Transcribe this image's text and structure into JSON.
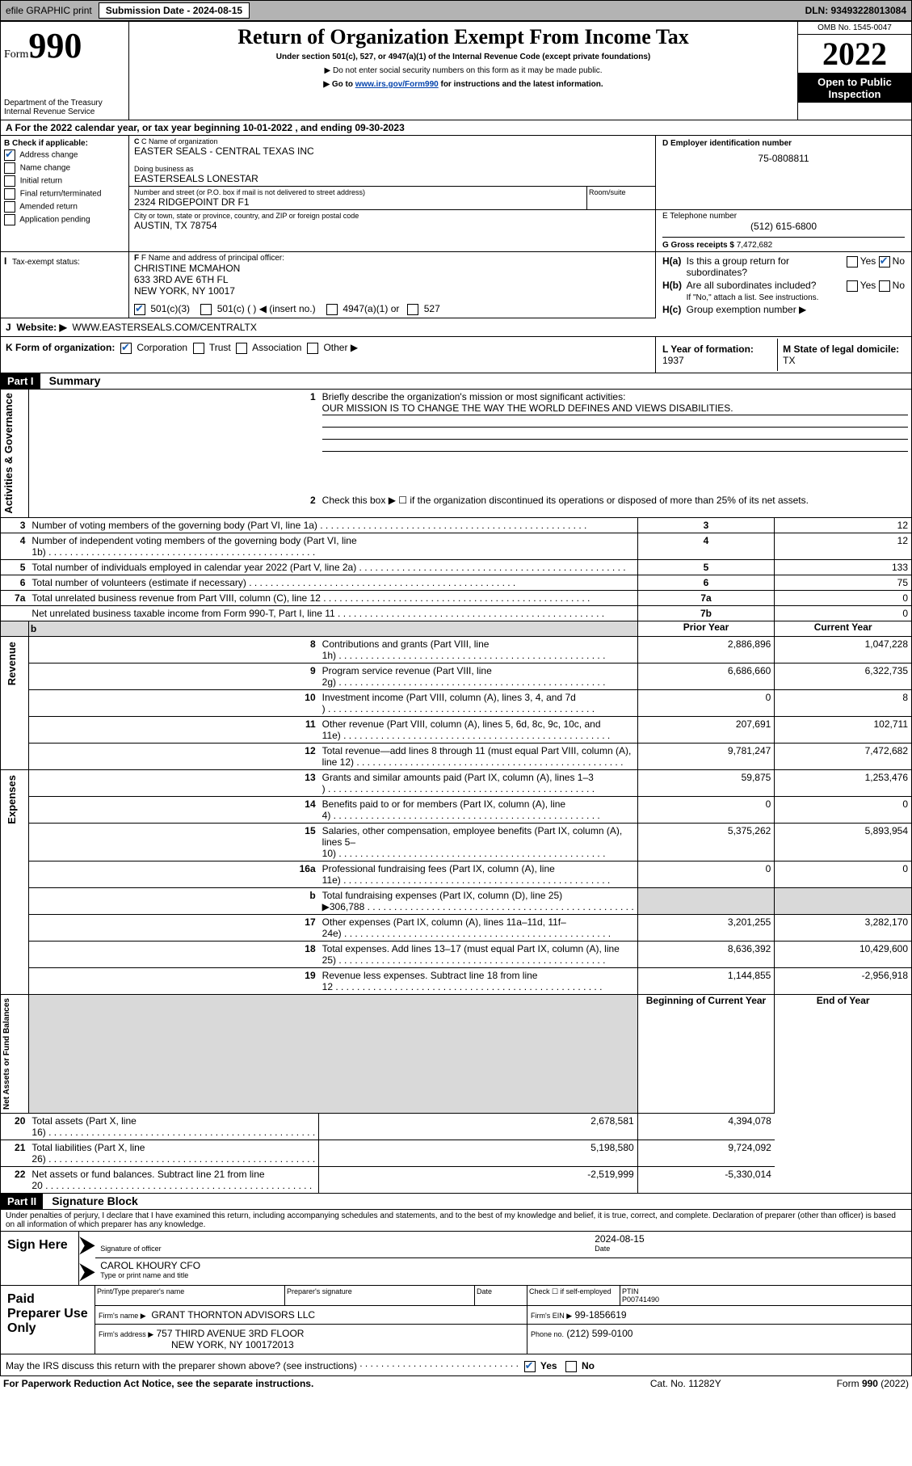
{
  "topbar": {
    "efile": "efile GRAPHIC print",
    "subdate_lbl": "Submission Date - 2024-08-15",
    "dln": "DLN: 93493228013084"
  },
  "header": {
    "form_word": "Form",
    "form_num": "990",
    "title": "Return of Organization Exempt From Income Tax",
    "subtitle1": "Under section 501(c), 527, or 4947(a)(1) of the Internal Revenue Code (except private foundations)",
    "subtitle2": "▶ Do not enter social security numbers on this form as it may be made public.",
    "subtitle3_pre": "▶ Go to ",
    "subtitle3_link": "www.irs.gov/Form990",
    "subtitle3_post": " for instructions and the latest information.",
    "dept": "Department of the Treasury",
    "irs": "Internal Revenue Service",
    "omb": "OMB No. 1545-0047",
    "year": "2022",
    "open": "Open to Public Inspection"
  },
  "periodA": {
    "text": "A For the 2022 calendar year, or tax year beginning 10-01-2022    , and ending 09-30-2023"
  },
  "boxB": {
    "title": "B Check if applicable:",
    "opts": [
      "Address change",
      "Name change",
      "Initial return",
      "Final return/terminated",
      "Amended return",
      "Application pending"
    ],
    "checked": [
      true,
      false,
      false,
      false,
      false,
      false
    ]
  },
  "boxC": {
    "lbl": "C Name of organization",
    "name": "EASTER SEALS - CENTRAL TEXAS INC",
    "dba_lbl": "Doing business as",
    "dba": "EASTERSEALS LONESTAR",
    "street_lbl": "Number and street (or P.O. box if mail is not delivered to street address)",
    "room_lbl": "Room/suite",
    "street": "2324 RIDGEPOINT DR F1",
    "city_lbl": "City or town, state or province, country, and ZIP or foreign postal code",
    "city": "AUSTIN, TX  78754"
  },
  "boxD": {
    "lbl": "D Employer identification number",
    "val": "75-0808811"
  },
  "boxE": {
    "lbl": "E Telephone number",
    "val": "(512) 615-6800"
  },
  "boxG": {
    "lbl": "G Gross receipts $",
    "val": "7,472,682"
  },
  "boxF": {
    "lbl": "F Name and address of principal officer:",
    "line1": "CHRISTINE MCMAHON",
    "line2": "633 3RD AVE 6TH FL",
    "line3": "NEW YORK, NY  10017"
  },
  "boxH": {
    "a1": "H(a)",
    "a2": "Is this a group return for",
    "a3": "subordinates?",
    "b1": "H(b)",
    "b2": "Are all subordinates included?",
    "note": "If \"No,\" attach a list. See instructions.",
    "c1": "H(c)",
    "c2": "Group exemption number ▶",
    "yes": "Yes",
    "no": "No"
  },
  "boxI": {
    "lbl": "Tax-exempt status:",
    "o1": "501(c)(3)",
    "o2": "501(c) (   ) ◀ (insert no.)",
    "o3": "4947(a)(1) or",
    "o4": "527"
  },
  "boxJ": {
    "lbl": "Website: ▶",
    "val": "WWW.EASTERSEALS.COM/CENTRALTX"
  },
  "boxK": {
    "lbl": "K Form of organization:",
    "o1": "Corporation",
    "o2": "Trust",
    "o3": "Association",
    "o4": "Other ▶"
  },
  "boxL": {
    "lbl": "L Year of formation:",
    "val": "1937"
  },
  "boxM": {
    "lbl": "M State of legal domicile:",
    "val": "TX"
  },
  "part1": {
    "bar": "Part I",
    "title": "Summary",
    "line1": "Briefly describe the organization's mission or most significant activities:",
    "mission": "OUR MISSION IS TO CHANGE THE WAY THE WORLD DEFINES AND VIEWS DISABILITIES.",
    "line2": "Check this box ▶ ☐  if the organization discontinued its operations or disposed of more than 25% of its net assets.",
    "vlabels": {
      "gov": "Activities & Governance",
      "rev": "Revenue",
      "exp": "Expenses",
      "net": "Net Assets or Fund Balances"
    },
    "rows_gov": [
      {
        "n": "3",
        "t": "Number of voting members of the governing body (Part VI, line 1a)",
        "box": "3",
        "v": "12"
      },
      {
        "n": "4",
        "t": "Number of independent voting members of the governing body (Part VI, line 1b)",
        "box": "4",
        "v": "12"
      },
      {
        "n": "5",
        "t": "Total number of individuals employed in calendar year 2022 (Part V, line 2a)",
        "box": "5",
        "v": "133"
      },
      {
        "n": "6",
        "t": "Total number of volunteers (estimate if necessary)",
        "box": "6",
        "v": "75"
      },
      {
        "n": "7a",
        "t": "Total unrelated business revenue from Part VIII, column (C), line 12",
        "box": "7a",
        "v": "0"
      },
      {
        "n": "",
        "t": "Net unrelated business taxable income from Form 990-T, Part I, line 11",
        "box": "7b",
        "v": "0"
      }
    ],
    "col_py": "Prior Year",
    "col_cy": "Current Year",
    "rows_2col": [
      {
        "sec": "rev",
        "n": "8",
        "t": "Contributions and grants (Part VIII, line 1h)",
        "py": "2,886,896",
        "cy": "1,047,228"
      },
      {
        "sec": "rev",
        "n": "9",
        "t": "Program service revenue (Part VIII, line 2g)",
        "py": "6,686,660",
        "cy": "6,322,735"
      },
      {
        "sec": "rev",
        "n": "10",
        "t": "Investment income (Part VIII, column (A), lines 3, 4, and 7d )",
        "py": "0",
        "cy": "8"
      },
      {
        "sec": "rev",
        "n": "11",
        "t": "Other revenue (Part VIII, column (A), lines 5, 6d, 8c, 9c, 10c, and 11e)",
        "py": "207,691",
        "cy": "102,711"
      },
      {
        "sec": "rev",
        "n": "12",
        "t": "Total revenue—add lines 8 through 11 (must equal Part VIII, column (A), line 12)",
        "py": "9,781,247",
        "cy": "7,472,682"
      },
      {
        "sec": "exp",
        "n": "13",
        "t": "Grants and similar amounts paid (Part IX, column (A), lines 1–3 )",
        "py": "59,875",
        "cy": "1,253,476"
      },
      {
        "sec": "exp",
        "n": "14",
        "t": "Benefits paid to or for members (Part IX, column (A), line 4)",
        "py": "0",
        "cy": "0"
      },
      {
        "sec": "exp",
        "n": "15",
        "t": "Salaries, other compensation, employee benefits (Part IX, column (A), lines 5–10)",
        "py": "5,375,262",
        "cy": "5,893,954"
      },
      {
        "sec": "exp",
        "n": "16a",
        "t": "Professional fundraising fees (Part IX, column (A), line 11e)",
        "py": "0",
        "cy": "0"
      },
      {
        "sec": "exp",
        "n": "b",
        "t": "Total fundraising expenses (Part IX, column (D), line 25) ▶306,788",
        "py": "",
        "cy": "",
        "shade": true
      },
      {
        "sec": "exp",
        "n": "17",
        "t": "Other expenses (Part IX, column (A), lines 11a–11d, 11f–24e)",
        "py": "3,201,255",
        "cy": "3,282,170"
      },
      {
        "sec": "exp",
        "n": "18",
        "t": "Total expenses. Add lines 13–17 (must equal Part IX, column (A), line 25)",
        "py": "8,636,392",
        "cy": "10,429,600"
      },
      {
        "sec": "exp",
        "n": "19",
        "t": "Revenue less expenses. Subtract line 18 from line 12",
        "py": "1,144,855",
        "cy": "-2,956,918"
      }
    ],
    "col_bcy": "Beginning of Current Year",
    "col_eoy": "End of Year",
    "rows_net": [
      {
        "n": "20",
        "t": "Total assets (Part X, line 16)",
        "py": "2,678,581",
        "cy": "4,394,078"
      },
      {
        "n": "21",
        "t": "Total liabilities (Part X, line 26)",
        "py": "5,198,580",
        "cy": "9,724,092"
      },
      {
        "n": "22",
        "t": "Net assets or fund balances. Subtract line 21 from line 20",
        "py": "-2,519,999",
        "cy": "-5,330,014"
      }
    ]
  },
  "part2": {
    "bar": "Part II",
    "title": "Signature Block",
    "decl": "Under penalties of perjury, I declare that I have examined this return, including accompanying schedules and statements, and to the best of my knowledge and belief, it is true, correct, and complete. Declaration of preparer (other than officer) is based on all information of which preparer has any knowledge.",
    "sign_here": "Sign Here",
    "sig_lbl": "Signature of officer",
    "date_lbl": "Date",
    "date_val": "2024-08-15",
    "name_lbl": "Type or print name and title",
    "name_val": "CAROL KHOURY CFO",
    "paid": "Paid Preparer Use Only",
    "p_name_lbl": "Print/Type preparer's name",
    "p_sig_lbl": "Preparer's signature",
    "p_date_lbl": "Date",
    "p_check": "Check ☐ if self-employed",
    "ptin_lbl": "PTIN",
    "ptin": "P00741490",
    "firm_name_lbl": "Firm's name   ▶",
    "firm_name": "GRANT THORNTON ADVISORS LLC",
    "firm_ein_lbl": "Firm's EIN ▶",
    "firm_ein": "99-1856619",
    "firm_addr_lbl": "Firm's address ▶",
    "firm_addr1": "757 THIRD AVENUE 3RD FLOOR",
    "firm_addr2": "NEW YORK, NY  100172013",
    "phone_lbl": "Phone no.",
    "phone": "(212) 599-0100",
    "discuss": "May the IRS discuss this return with the preparer shown above? (see instructions)",
    "yes": "Yes",
    "no": "No"
  },
  "footer": {
    "l": "For Paperwork Reduction Act Notice, see the separate instructions.",
    "c": "Cat. No. 11282Y",
    "r": "Form 990 (2022)"
  }
}
